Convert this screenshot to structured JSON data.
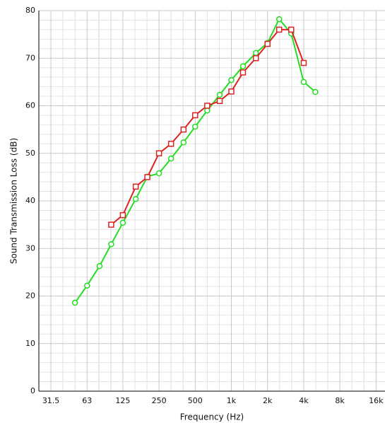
{
  "chart_data": {
    "type": "line",
    "xlabel": "Frequency (Hz)",
    "ylabel": "Sound Transmission Loss (dB)",
    "xscale": "log",
    "grid": true,
    "minor_grid": true,
    "xlim": [
      25,
      19000
    ],
    "ylim": [
      0,
      80
    ],
    "xticks": [
      31.5,
      63,
      125,
      250,
      500,
      {
        "value": 1000,
        "label": "1k"
      },
      {
        "value": 2000,
        "label": "2k"
      },
      {
        "value": 4000,
        "label": "4k"
      },
      {
        "value": 8000,
        "label": "8k"
      },
      {
        "value": 16000,
        "label": "16k"
      }
    ],
    "yticks": [
      0,
      10,
      20,
      30,
      40,
      50,
      60,
      70,
      80
    ],
    "series": [
      {
        "color": "#22dd22",
        "marker": "circle",
        "x": [
          50,
          63,
          80,
          100,
          125,
          160,
          200,
          250,
          315,
          400,
          500,
          630,
          800,
          1000,
          1250,
          1600,
          2000,
          2500,
          3150,
          4000,
          5000
        ],
        "values": [
          18.6,
          22.2,
          26.3,
          30.9,
          35.4,
          40.4,
          45.1,
          45.8,
          48.9,
          52.3,
          55.6,
          59,
          62.3,
          65.4,
          68.3,
          71.1,
          73.2,
          78.2,
          75.2,
          65,
          62.9
        ]
      },
      {
        "color": "#dd2222",
        "marker": "square",
        "x": [
          100,
          125,
          160,
          200,
          250,
          315,
          400,
          500,
          630,
          800,
          1000,
          1250,
          1600,
          2000,
          2500,
          3150,
          4000
        ],
        "values": [
          35,
          37,
          43,
          45,
          50,
          52,
          55,
          58,
          60,
          61,
          63,
          67,
          70,
          73,
          76,
          76,
          69
        ]
      }
    ]
  }
}
